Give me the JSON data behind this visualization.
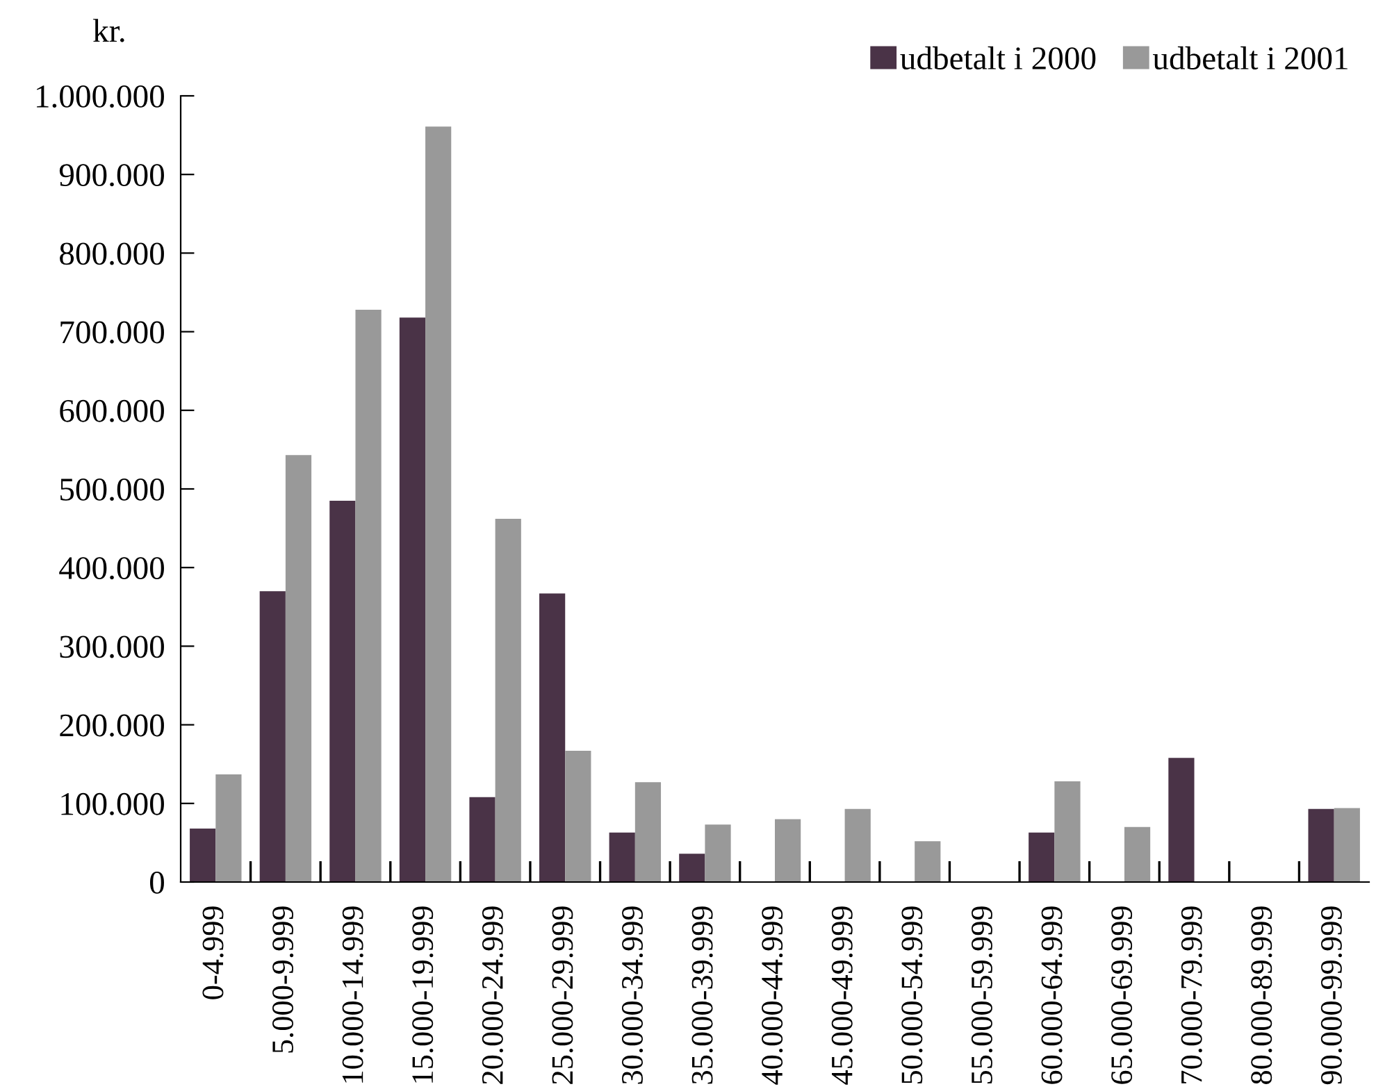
{
  "chart_data": {
    "type": "bar",
    "ylabel": "kr.",
    "categories": [
      "0-4.999",
      "5.000-9.999",
      "10.000-14.999",
      "15.000-19.999",
      "20.000-24.999",
      "25.000-29.999",
      "30.000-34.999",
      "35.000-39.999",
      "40.000-44.999",
      "45.000-49.999",
      "50.000-54.999",
      "55.000-59.999",
      "60.000-64.999",
      "65.000-69.999",
      "70.000-79.999",
      "80.000-89.999",
      "90.000-99.999"
    ],
    "series": [
      {
        "name": "udbetalt i 2000",
        "color": "#4a3347",
        "values": [
          68000,
          370000,
          485000,
          718000,
          108000,
          367000,
          63000,
          36000,
          0,
          0,
          0,
          0,
          63000,
          0,
          158000,
          0,
          93000
        ]
      },
      {
        "name": "udbetalt i 2001",
        "color": "#999999",
        "values": [
          137000,
          543000,
          728000,
          961000,
          462000,
          167000,
          127000,
          73000,
          80000,
          93000,
          52000,
          0,
          128000,
          70000,
          0,
          0,
          94000
        ]
      }
    ],
    "ylim": [
      0,
      1000000
    ],
    "yticks": [
      0,
      {
        "value": 100000,
        "label": "100.000"
      },
      {
        "value": 200000,
        "label": "200.000"
      },
      {
        "value": 300000,
        "label": "300.000"
      },
      {
        "value": 400000,
        "label": "400.000"
      },
      {
        "value": 500000,
        "label": "500.000"
      },
      {
        "value": 600000,
        "label": "600.000"
      },
      {
        "value": 700000,
        "label": "700.000"
      },
      {
        "value": 800000,
        "label": "800.000"
      },
      {
        "value": 900000,
        "label": "900.000"
      },
      {
        "value": 1000000,
        "label": "1.000.000"
      }
    ],
    "grid": false,
    "legend": "top right"
  }
}
